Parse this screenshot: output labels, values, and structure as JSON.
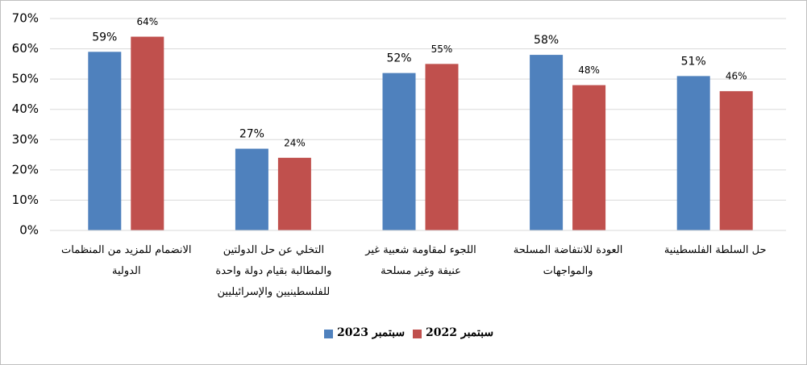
{
  "chart_data": {
    "type": "bar",
    "categories": [
      "الانضمام للمزيد من المنظمات الدولية",
      "التخلي عن حل الدولتين والمطالبة بقيام دولة واحدة للفلسطينيين والإسرائيليين",
      "اللجوء لمقاومة شعبية غير عنيفة وغير مسلحة",
      "العودة للانتفاضة المسلحة والمواجهات",
      "حل السلطة الفلسطينية"
    ],
    "series": [
      {
        "name": "سبتمبر 2023",
        "color": "#4f81bd",
        "values": [
          59,
          27,
          52,
          58,
          51
        ],
        "value_labels": [
          "59%",
          "27%",
          "52%",
          "58%",
          "51%"
        ]
      },
      {
        "name": "سبتمبر 2022",
        "color": "#c0504d",
        "values": [
          64,
          24,
          55,
          48,
          46
        ],
        "value_labels": [
          "64%",
          "24%",
          "55%",
          "48%",
          "46%"
        ]
      }
    ],
    "ylim": [
      0,
      70
    ],
    "yticks": [
      {
        "value": 0,
        "label": "0%"
      },
      {
        "value": 10,
        "label": "10%"
      },
      {
        "value": 20,
        "label": "20%"
      },
      {
        "value": 30,
        "label": "30%"
      },
      {
        "value": 40,
        "label": "40%"
      },
      {
        "value": 50,
        "label": "50%"
      },
      {
        "value": 60,
        "label": "60%"
      },
      {
        "value": 70,
        "label": "70%"
      }
    ],
    "grid": true
  }
}
